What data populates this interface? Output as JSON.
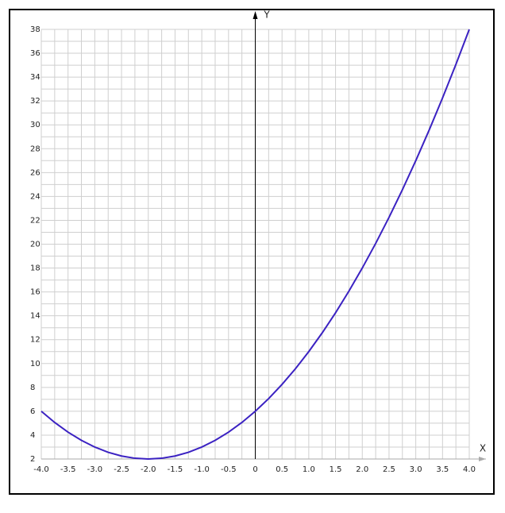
{
  "chart_data": {
    "type": "line",
    "x_label": "X",
    "y_label": "Y",
    "x": [
      -4,
      -3.75,
      -3.5,
      -3.25,
      -3,
      -2.75,
      -2.5,
      -2.25,
      -2,
      -1.75,
      -1.5,
      -1.25,
      -1,
      -0.75,
      -0.5,
      -0.25,
      0,
      0.25,
      0.5,
      0.75,
      1,
      1.25,
      1.5,
      1.75,
      2,
      2.25,
      2.5,
      2.75,
      3,
      3.25,
      3.5,
      3.75,
      4
    ],
    "series": [
      {
        "color": "#3b22c2",
        "values": [
          6,
          5.0625,
          4.25,
          3.5625,
          3,
          2.5625,
          2.25,
          2.0625,
          2,
          2.0625,
          2.25,
          2.5625,
          3,
          3.5625,
          4.25,
          5.0625,
          6,
          7.0625,
          8.25,
          9.5625,
          11,
          12.5625,
          14.25,
          16.0625,
          18,
          20.0625,
          22.25,
          24.5625,
          27,
          29.5625,
          32.25,
          35.0625,
          38
        ]
      }
    ],
    "xlim": [
      -4,
      4
    ],
    "ylim": [
      2,
      38
    ],
    "xticks": [
      {
        "value": -4,
        "label": "-4.0"
      },
      -3.5,
      {
        "value": -3,
        "label": "-3.0"
      },
      -2.5,
      {
        "value": -2,
        "label": "-2.0"
      },
      -1.5,
      {
        "value": -1,
        "label": "-1.0"
      },
      -0.5,
      0,
      0.5,
      {
        "value": 1,
        "label": "1.0"
      },
      1.5,
      {
        "value": 2,
        "label": "2.0"
      },
      2.5,
      {
        "value": 3,
        "label": "3.0"
      },
      3.5,
      {
        "value": 4,
        "label": "4.0"
      }
    ],
    "yticks": [
      2,
      4,
      6,
      8,
      10,
      12,
      14,
      16,
      18,
      20,
      22,
      24,
      26,
      28,
      30,
      32,
      34,
      36,
      38
    ],
    "grid": true
  }
}
